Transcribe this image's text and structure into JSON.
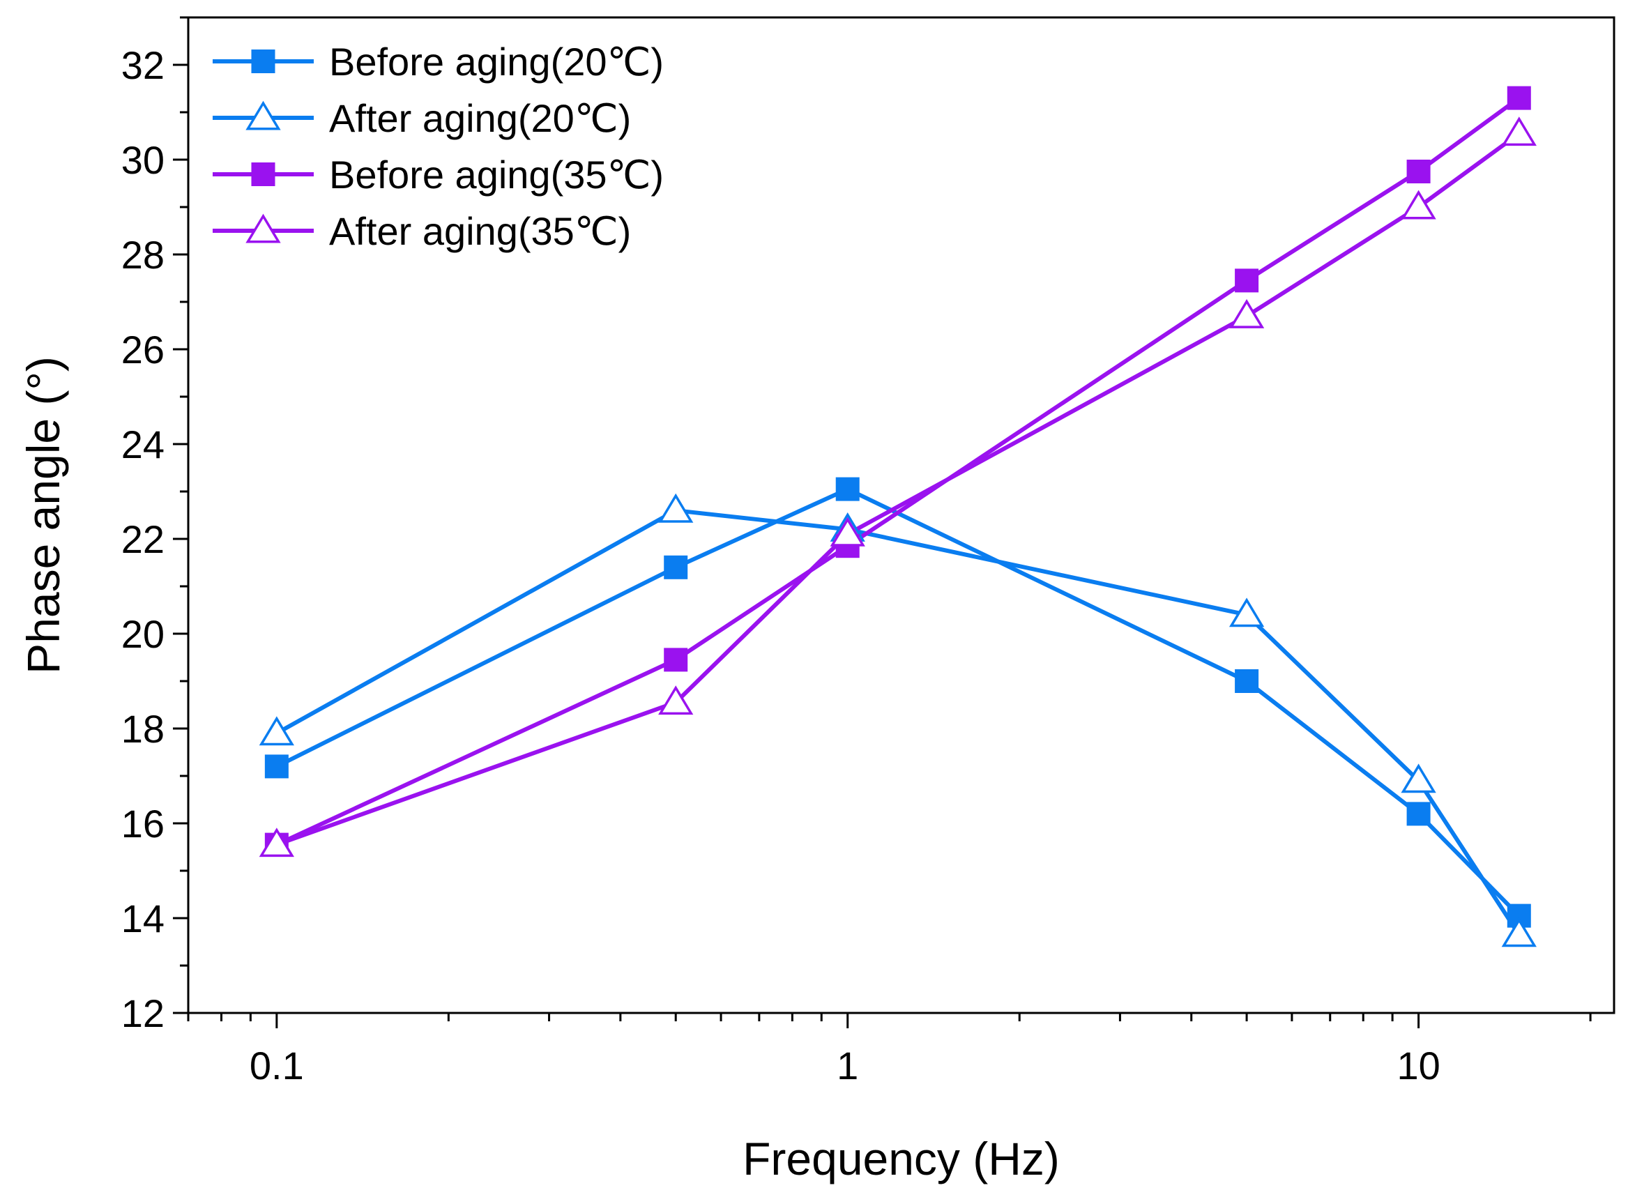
{
  "chart_data": {
    "type": "line",
    "title": "",
    "xlabel": "Frequency (Hz)",
    "ylabel": "Phase angle (°)",
    "xscale": "log",
    "xlim": [
      0.07,
      22
    ],
    "ylim": [
      12,
      33
    ],
    "xticks": [
      0.1,
      1,
      10
    ],
    "xtick_labels": [
      "0.1",
      "1",
      "10"
    ],
    "yticks": [
      12,
      14,
      16,
      18,
      20,
      22,
      24,
      26,
      28,
      30,
      32
    ],
    "ytick_labels": [
      "12",
      "14",
      "16",
      "18",
      "20",
      "22",
      "24",
      "26",
      "28",
      "30",
      "32"
    ],
    "grid": false,
    "legend_position": "top-left",
    "x": [
      0.1,
      0.5,
      1,
      5,
      10,
      15
    ],
    "series": [
      {
        "name": "Before aging(20℃)",
        "color": "#0a7df0",
        "marker": "filled-square",
        "values": [
          17.2,
          21.4,
          23.05,
          19.0,
          16.2,
          14.05
        ]
      },
      {
        "name": "After aging(20℃)",
        "color": "#0a7df0",
        "marker": "hollow-triangle",
        "values": [
          17.9,
          22.6,
          22.2,
          20.4,
          16.9,
          13.65
        ]
      },
      {
        "name": "Before aging(35℃)",
        "color": "#9a12ef",
        "marker": "filled-square",
        "values": [
          15.55,
          19.45,
          21.85,
          27.45,
          29.75,
          31.3
        ]
      },
      {
        "name": "After aging(35℃)",
        "color": "#9a12ef",
        "marker": "hollow-triangle",
        "values": [
          15.55,
          18.55,
          22.1,
          26.7,
          29.0,
          30.55
        ]
      }
    ]
  }
}
